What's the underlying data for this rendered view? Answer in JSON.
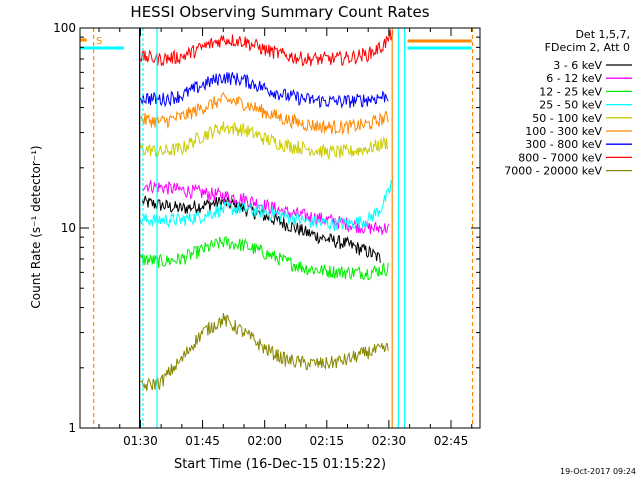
{
  "chart_data": {
    "type": "line",
    "title": "HESSI Observing Summary Count Rates",
    "xlabel": "Start Time (16-Dec-15 01:15:22)",
    "ylabel": "Count Rate (s⁻¹ detector⁻¹)",
    "x_tick_labels": [
      "01:30",
      "01:45",
      "02:00",
      "02:15",
      "02:30",
      "02:45"
    ],
    "x_ticks_min": [
      90,
      105,
      120,
      135,
      150,
      165
    ],
    "xlim_min": [
      75.4,
      172
    ],
    "y_tick_labels": [
      "1",
      "10",
      "100"
    ],
    "y_ticks": [
      1,
      10,
      100
    ],
    "ylim": [
      1,
      100
    ],
    "y_scale": "log",
    "legend_header": [
      "Det 1,5,7,",
      "FDecim 2, Att 0"
    ],
    "legend_position": "right, outside plot",
    "series": [
      {
        "name": "3 - 6 keV",
        "color": "#000000",
        "x": [
          90.5,
          95,
          100,
          105,
          110,
          115,
          120,
          125,
          130,
          135,
          140,
          145,
          148
        ],
        "y": [
          13.5,
          13,
          12.5,
          13,
          13.5,
          12.5,
          11.5,
          10.5,
          9.5,
          8.8,
          8.3,
          7.6,
          7.0
        ]
      },
      {
        "name": "6 - 12 keV",
        "color": "#ff00ff",
        "x": [
          90.5,
          95,
          100,
          105,
          110,
          115,
          120,
          125,
          130,
          135,
          140,
          145,
          150
        ],
        "y": [
          16.5,
          16,
          15.5,
          15,
          14.5,
          14,
          13,
          12,
          11.5,
          11,
          10.5,
          10,
          10
        ]
      },
      {
        "name": "12 - 25 keV",
        "color": "#00ee00",
        "x": [
          90,
          95,
          100,
          105,
          110,
          115,
          120,
          125,
          130,
          135,
          140,
          145,
          150
        ],
        "y": [
          7.0,
          6.8,
          7.0,
          7.8,
          8.5,
          8.2,
          7.5,
          6.8,
          6.3,
          6.1,
          6.0,
          6.0,
          6.3
        ]
      },
      {
        "name": "25 - 50 keV",
        "color": "#00ffff",
        "x": [
          90,
          95,
          100,
          105,
          110,
          115,
          120,
          125,
          130,
          135,
          140,
          145,
          148,
          150,
          151
        ],
        "y": [
          11,
          11,
          11,
          11.5,
          12.5,
          12.5,
          12,
          11.5,
          10.8,
          10.5,
          10.5,
          11,
          12.5,
          15,
          18
        ]
      },
      {
        "name": "50 - 100 keV",
        "color": "#cccc00",
        "x": [
          90,
          95,
          100,
          105,
          110,
          115,
          120,
          125,
          130,
          135,
          140,
          145,
          150
        ],
        "y": [
          25,
          24,
          25,
          29,
          32,
          31,
          28,
          26,
          25,
          24,
          24,
          25,
          27
        ]
      },
      {
        "name": "100 - 300 keV",
        "color": "#ff8800",
        "x": [
          90,
          95,
          100,
          105,
          110,
          115,
          120,
          125,
          130,
          135,
          140,
          145,
          150
        ],
        "y": [
          35,
          34,
          36,
          40,
          44,
          42,
          38,
          35,
          33,
          32,
          32,
          33,
          36
        ]
      },
      {
        "name": "300 - 800 keV",
        "color": "#0000ff",
        "x": [
          90,
          95,
          100,
          105,
          110,
          115,
          120,
          125,
          130,
          135,
          140,
          145,
          150
        ],
        "y": [
          45,
          44,
          46,
          52,
          57,
          55,
          50,
          46,
          44,
          43,
          43,
          44,
          46
        ]
      },
      {
        "name": "800 - 7000 keV",
        "color": "#ff0000",
        "x": [
          90,
          95,
          100,
          105,
          110,
          115,
          120,
          125,
          130,
          135,
          140,
          145,
          148,
          150,
          151
        ],
        "y": [
          72,
          70,
          72,
          80,
          88,
          86,
          78,
          73,
          70,
          70,
          71,
          74,
          80,
          88,
          98
        ]
      },
      {
        "name": "7000 - 20000 keV",
        "color": "#888800",
        "x": [
          90,
          95,
          100,
          105,
          110,
          115,
          120,
          125,
          130,
          135,
          140,
          145,
          150
        ],
        "y": [
          1.6,
          1.7,
          2.2,
          3.0,
          3.5,
          3.0,
          2.5,
          2.2,
          2.1,
          2.1,
          2.2,
          2.4,
          2.5
        ]
      }
    ],
    "grid": false
  },
  "footer_timestamp": "19-Oct-2017 09:24",
  "flag_label": "S"
}
